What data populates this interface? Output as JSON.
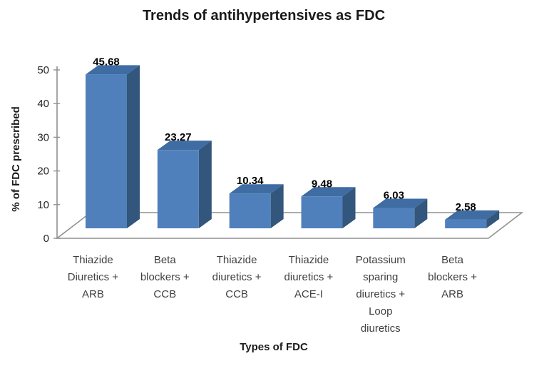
{
  "chart_data": {
    "type": "bar",
    "variant": "3d-clustered-column",
    "title": "Trends of antihypertensives as FDC",
    "xlabel": "Types of FDC",
    "ylabel": "% of FDC prescribed",
    "ylim": [
      0,
      50
    ],
    "yticks": [
      0,
      10,
      20,
      30,
      40,
      50
    ],
    "grid": false,
    "legend": null,
    "categories": [
      "Thiazide Diuretics + ARB",
      "Beta blockers + CCB",
      "Thiazide diuretics + CCB",
      "Thiazide diuretics + ACE-I",
      "Potassium sparing diuretics + Loop diuretics",
      "Beta blockers + ARB"
    ],
    "category_label_lines": [
      [
        "Thiazide",
        "Diuretics +",
        "ARB"
      ],
      [
        "Beta",
        "blockers +",
        "CCB"
      ],
      [
        "Thiazide",
        "diuretics +",
        "CCB"
      ],
      [
        "Thiazide",
        "diuretics +",
        "ACE-I"
      ],
      [
        "Potassium",
        "sparing",
        "diuretics +",
        "Loop",
        "diuretics"
      ],
      [
        "Beta",
        "blockers +",
        "ARB"
      ]
    ],
    "values": [
      45.68,
      23.27,
      10.34,
      9.48,
      6.03,
      2.58
    ],
    "data_labels": [
      "45.68",
      "23.27",
      "10.34",
      "9.48",
      "6.03",
      "2.58"
    ],
    "colors": {
      "background": "#ffffff",
      "bar_front": "#4f80bb",
      "bar_top": "#3e6ca3",
      "bar_side": "#33567c",
      "axis_line": "#919191",
      "title_text": "#1a1a1a",
      "tick_text": "#262626",
      "value_text": "#000000",
      "category_text": "#3f3f3f"
    }
  }
}
